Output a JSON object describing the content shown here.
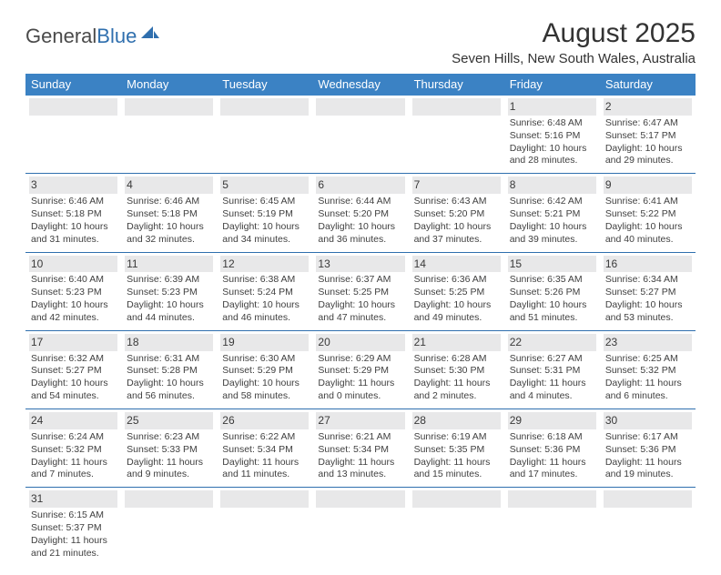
{
  "logo": {
    "text1": "General",
    "text2": "Blue"
  },
  "title": "August 2025",
  "subtitle": "Seven Hills, New South Wales, Australia",
  "colors": {
    "header_bg": "#3b82c4",
    "header_text": "#ffffff",
    "row_border": "#2f6fae",
    "daynum_bg": "#e8e8e9",
    "body_text": "#404040",
    "title_text": "#333333",
    "logo_gray": "#4a4a4a",
    "logo_blue": "#2f6fae",
    "page_bg": "#ffffff"
  },
  "fonts": {
    "title_size": 30,
    "subtitle_size": 15,
    "logo_size": 22,
    "weekday_size": 13,
    "daynum_size": 12,
    "cell_size": 10.5
  },
  "weekdays": [
    "Sunday",
    "Monday",
    "Tuesday",
    "Wednesday",
    "Thursday",
    "Friday",
    "Saturday"
  ],
  "weeks": [
    [
      null,
      null,
      null,
      null,
      null,
      {
        "d": "1",
        "sr": "Sunrise: 6:48 AM",
        "ss": "Sunset: 5:16 PM",
        "dl1": "Daylight: 10 hours",
        "dl2": "and 28 minutes."
      },
      {
        "d": "2",
        "sr": "Sunrise: 6:47 AM",
        "ss": "Sunset: 5:17 PM",
        "dl1": "Daylight: 10 hours",
        "dl2": "and 29 minutes."
      }
    ],
    [
      {
        "d": "3",
        "sr": "Sunrise: 6:46 AM",
        "ss": "Sunset: 5:18 PM",
        "dl1": "Daylight: 10 hours",
        "dl2": "and 31 minutes."
      },
      {
        "d": "4",
        "sr": "Sunrise: 6:46 AM",
        "ss": "Sunset: 5:18 PM",
        "dl1": "Daylight: 10 hours",
        "dl2": "and 32 minutes."
      },
      {
        "d": "5",
        "sr": "Sunrise: 6:45 AM",
        "ss": "Sunset: 5:19 PM",
        "dl1": "Daylight: 10 hours",
        "dl2": "and 34 minutes."
      },
      {
        "d": "6",
        "sr": "Sunrise: 6:44 AM",
        "ss": "Sunset: 5:20 PM",
        "dl1": "Daylight: 10 hours",
        "dl2": "and 36 minutes."
      },
      {
        "d": "7",
        "sr": "Sunrise: 6:43 AM",
        "ss": "Sunset: 5:20 PM",
        "dl1": "Daylight: 10 hours",
        "dl2": "and 37 minutes."
      },
      {
        "d": "8",
        "sr": "Sunrise: 6:42 AM",
        "ss": "Sunset: 5:21 PM",
        "dl1": "Daylight: 10 hours",
        "dl2": "and 39 minutes."
      },
      {
        "d": "9",
        "sr": "Sunrise: 6:41 AM",
        "ss": "Sunset: 5:22 PM",
        "dl1": "Daylight: 10 hours",
        "dl2": "and 40 minutes."
      }
    ],
    [
      {
        "d": "10",
        "sr": "Sunrise: 6:40 AM",
        "ss": "Sunset: 5:23 PM",
        "dl1": "Daylight: 10 hours",
        "dl2": "and 42 minutes."
      },
      {
        "d": "11",
        "sr": "Sunrise: 6:39 AM",
        "ss": "Sunset: 5:23 PM",
        "dl1": "Daylight: 10 hours",
        "dl2": "and 44 minutes."
      },
      {
        "d": "12",
        "sr": "Sunrise: 6:38 AM",
        "ss": "Sunset: 5:24 PM",
        "dl1": "Daylight: 10 hours",
        "dl2": "and 46 minutes."
      },
      {
        "d": "13",
        "sr": "Sunrise: 6:37 AM",
        "ss": "Sunset: 5:25 PM",
        "dl1": "Daylight: 10 hours",
        "dl2": "and 47 minutes."
      },
      {
        "d": "14",
        "sr": "Sunrise: 6:36 AM",
        "ss": "Sunset: 5:25 PM",
        "dl1": "Daylight: 10 hours",
        "dl2": "and 49 minutes."
      },
      {
        "d": "15",
        "sr": "Sunrise: 6:35 AM",
        "ss": "Sunset: 5:26 PM",
        "dl1": "Daylight: 10 hours",
        "dl2": "and 51 minutes."
      },
      {
        "d": "16",
        "sr": "Sunrise: 6:34 AM",
        "ss": "Sunset: 5:27 PM",
        "dl1": "Daylight: 10 hours",
        "dl2": "and 53 minutes."
      }
    ],
    [
      {
        "d": "17",
        "sr": "Sunrise: 6:32 AM",
        "ss": "Sunset: 5:27 PM",
        "dl1": "Daylight: 10 hours",
        "dl2": "and 54 minutes."
      },
      {
        "d": "18",
        "sr": "Sunrise: 6:31 AM",
        "ss": "Sunset: 5:28 PM",
        "dl1": "Daylight: 10 hours",
        "dl2": "and 56 minutes."
      },
      {
        "d": "19",
        "sr": "Sunrise: 6:30 AM",
        "ss": "Sunset: 5:29 PM",
        "dl1": "Daylight: 10 hours",
        "dl2": "and 58 minutes."
      },
      {
        "d": "20",
        "sr": "Sunrise: 6:29 AM",
        "ss": "Sunset: 5:29 PM",
        "dl1": "Daylight: 11 hours",
        "dl2": "and 0 minutes."
      },
      {
        "d": "21",
        "sr": "Sunrise: 6:28 AM",
        "ss": "Sunset: 5:30 PM",
        "dl1": "Daylight: 11 hours",
        "dl2": "and 2 minutes."
      },
      {
        "d": "22",
        "sr": "Sunrise: 6:27 AM",
        "ss": "Sunset: 5:31 PM",
        "dl1": "Daylight: 11 hours",
        "dl2": "and 4 minutes."
      },
      {
        "d": "23",
        "sr": "Sunrise: 6:25 AM",
        "ss": "Sunset: 5:32 PM",
        "dl1": "Daylight: 11 hours",
        "dl2": "and 6 minutes."
      }
    ],
    [
      {
        "d": "24",
        "sr": "Sunrise: 6:24 AM",
        "ss": "Sunset: 5:32 PM",
        "dl1": "Daylight: 11 hours",
        "dl2": "and 7 minutes."
      },
      {
        "d": "25",
        "sr": "Sunrise: 6:23 AM",
        "ss": "Sunset: 5:33 PM",
        "dl1": "Daylight: 11 hours",
        "dl2": "and 9 minutes."
      },
      {
        "d": "26",
        "sr": "Sunrise: 6:22 AM",
        "ss": "Sunset: 5:34 PM",
        "dl1": "Daylight: 11 hours",
        "dl2": "and 11 minutes."
      },
      {
        "d": "27",
        "sr": "Sunrise: 6:21 AM",
        "ss": "Sunset: 5:34 PM",
        "dl1": "Daylight: 11 hours",
        "dl2": "and 13 minutes."
      },
      {
        "d": "28",
        "sr": "Sunrise: 6:19 AM",
        "ss": "Sunset: 5:35 PM",
        "dl1": "Daylight: 11 hours",
        "dl2": "and 15 minutes."
      },
      {
        "d": "29",
        "sr": "Sunrise: 6:18 AM",
        "ss": "Sunset: 5:36 PM",
        "dl1": "Daylight: 11 hours",
        "dl2": "and 17 minutes."
      },
      {
        "d": "30",
        "sr": "Sunrise: 6:17 AM",
        "ss": "Sunset: 5:36 PM",
        "dl1": "Daylight: 11 hours",
        "dl2": "and 19 minutes."
      }
    ],
    [
      {
        "d": "31",
        "sr": "Sunrise: 6:15 AM",
        "ss": "Sunset: 5:37 PM",
        "dl1": "Daylight: 11 hours",
        "dl2": "and 21 minutes."
      },
      null,
      null,
      null,
      null,
      null,
      null
    ]
  ]
}
